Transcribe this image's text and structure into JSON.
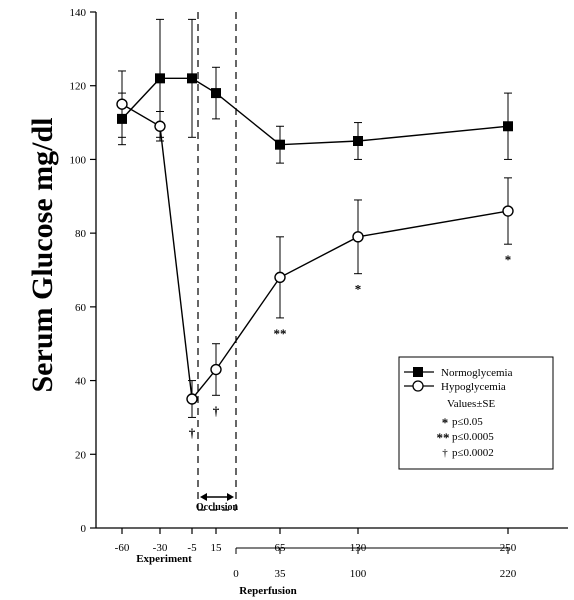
{
  "chart_data": {
    "type": "line",
    "title": "",
    "ylabel": "Serum Glucose mg/dl",
    "ylim": [
      0,
      140
    ],
    "yticks": [
      0,
      20,
      40,
      60,
      80,
      100,
      120,
      140
    ],
    "x_categories": [
      "-60",
      "-30",
      "-5",
      "15",
      "65",
      "130",
      "250"
    ],
    "x_secondary_ticks": [
      "0",
      "35",
      "100",
      "220"
    ],
    "x_axis_label": "Experiment",
    "x_secondary_label": "Reperfusion",
    "occlusion_label": "Occlusion",
    "series": [
      {
        "name": "Normoglycemia",
        "marker": "filled-square",
        "x": [
          -60,
          -30,
          -5,
          15,
          65,
          130,
          250
        ],
        "values": [
          111,
          122,
          122,
          118,
          104,
          105,
          109
        ],
        "error": [
          7,
          16,
          16,
          7,
          5,
          5,
          9
        ]
      },
      {
        "name": "Hypoglycemia",
        "marker": "open-circle",
        "x": [
          -60,
          -30,
          -5,
          15,
          65,
          130,
          250
        ],
        "values": [
          115,
          109,
          35,
          43,
          68,
          79,
          86
        ],
        "error": [
          9,
          4,
          5,
          7,
          11,
          10,
          9
        ],
        "significance": [
          "",
          "",
          "†",
          "†",
          "**",
          "*",
          "*"
        ]
      }
    ],
    "legend": {
      "placement": "bottom-right",
      "title": "Values±SE",
      "notes": [
        {
          "symbol": "*",
          "text": "p≤0.05"
        },
        {
          "symbol": "**",
          "text": "p≤0.0005"
        },
        {
          "symbol": "†",
          "text": "p≤0.0002"
        }
      ]
    }
  }
}
